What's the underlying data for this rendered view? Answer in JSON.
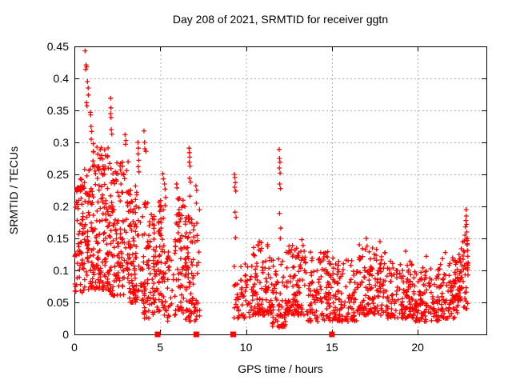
{
  "chart_data": {
    "type": "scatter",
    "title": "Day 208 of 2021, SRMTID for receiver ggtn",
    "xlabel": "GPS time / hours",
    "ylabel": "SRMTID / TECUs",
    "xlim": [
      0,
      24
    ],
    "ylim": [
      0,
      0.45
    ],
    "xticks": [
      0,
      5,
      10,
      15,
      20
    ],
    "yticks": [
      0,
      0.05,
      0.1,
      0.15,
      0.2,
      0.25,
      0.3,
      0.35,
      0.4,
      0.45
    ],
    "grid": true,
    "legend": "none",
    "marker": "plus",
    "series_name": "SRMTID",
    "colors": {
      "points": "#ff0000",
      "grid": "#b0b0b0",
      "axis": "#000000",
      "background": "#ffffff",
      "axis_markers": "#ff0000"
    },
    "axis_event_markers_x": [
      4.85,
      7.1,
      9.25,
      15.0
    ],
    "data_gaps_hours": [
      [
        7.3,
        9.25
      ],
      [
        23.0,
        24.0
      ]
    ],
    "spike_points": [
      [
        0.62,
        0.443
      ],
      [
        0.68,
        0.421
      ],
      [
        0.71,
        0.418
      ],
      [
        0.66,
        0.414
      ],
      [
        0.76,
        0.395
      ],
      [
        0.8,
        0.385
      ],
      [
        0.81,
        0.374
      ],
      [
        0.7,
        0.362
      ],
      [
        0.73,
        0.357
      ],
      [
        0.93,
        0.347
      ],
      [
        0.95,
        0.343
      ],
      [
        0.97,
        0.325
      ],
      [
        1.0,
        0.317
      ],
      [
        0.98,
        0.305
      ],
      [
        1.1,
        0.298
      ],
      [
        1.12,
        0.285
      ],
      [
        1.08,
        0.271
      ],
      [
        1.15,
        0.262
      ],
      [
        2.1,
        0.369
      ],
      [
        2.12,
        0.354
      ],
      [
        2.1,
        0.345
      ],
      [
        2.13,
        0.339
      ],
      [
        2.15,
        0.32
      ],
      [
        2.18,
        0.313
      ],
      [
        2.95,
        0.312
      ],
      [
        3.0,
        0.303
      ],
      [
        2.98,
        0.297
      ],
      [
        3.7,
        0.3
      ],
      [
        3.73,
        0.291
      ],
      [
        3.71,
        0.282
      ],
      [
        3.75,
        0.272
      ],
      [
        3.72,
        0.262
      ],
      [
        3.76,
        0.254
      ],
      [
        4.05,
        0.318
      ],
      [
        4.08,
        0.3
      ],
      [
        4.1,
        0.29
      ],
      [
        4.16,
        0.286
      ],
      [
        5.15,
        0.251
      ],
      [
        5.18,
        0.243
      ],
      [
        5.25,
        0.235
      ],
      [
        5.28,
        0.227
      ],
      [
        5.32,
        0.214
      ],
      [
        5.95,
        0.235
      ],
      [
        5.98,
        0.229
      ],
      [
        6.02,
        0.212
      ],
      [
        6.68,
        0.291
      ],
      [
        6.7,
        0.284
      ],
      [
        6.72,
        0.277
      ],
      [
        6.69,
        0.269
      ],
      [
        6.74,
        0.263
      ],
      [
        6.71,
        0.244
      ],
      [
        6.76,
        0.238
      ],
      [
        6.73,
        0.216
      ],
      [
        7.08,
        0.232
      ],
      [
        7.12,
        0.225
      ],
      [
        7.1,
        0.205
      ],
      [
        9.33,
        0.25
      ],
      [
        9.35,
        0.245
      ],
      [
        9.37,
        0.237
      ],
      [
        9.34,
        0.23
      ],
      [
        9.4,
        0.224
      ],
      [
        9.36,
        0.191
      ],
      [
        9.42,
        0.183
      ],
      [
        9.38,
        0.151
      ],
      [
        10.7,
        0.14
      ],
      [
        10.75,
        0.132
      ],
      [
        11.93,
        0.289
      ],
      [
        11.95,
        0.275
      ],
      [
        11.97,
        0.269
      ],
      [
        11.94,
        0.26
      ],
      [
        11.98,
        0.252
      ],
      [
        11.96,
        0.235
      ],
      [
        12.0,
        0.228
      ],
      [
        11.95,
        0.189
      ],
      [
        12.02,
        0.166
      ],
      [
        11.99,
        0.15
      ],
      [
        12.5,
        0.138
      ],
      [
        12.55,
        0.128
      ],
      [
        13.25,
        0.148
      ],
      [
        13.32,
        0.139
      ],
      [
        13.38,
        0.13
      ],
      [
        14.35,
        0.128
      ],
      [
        16.6,
        0.14
      ],
      [
        17.0,
        0.15
      ],
      [
        17.05,
        0.138
      ],
      [
        17.8,
        0.145
      ],
      [
        18.1,
        0.128
      ],
      [
        19.3,
        0.13
      ],
      [
        20.5,
        0.122
      ],
      [
        21.6,
        0.128
      ],
      [
        22.72,
        0.146
      ],
      [
        22.75,
        0.155
      ],
      [
        22.78,
        0.168
      ],
      [
        22.8,
        0.178
      ],
      [
        22.82,
        0.195
      ],
      [
        22.83,
        0.185
      ],
      [
        22.85,
        0.172
      ],
      [
        22.86,
        0.16
      ],
      [
        22.88,
        0.15
      ],
      [
        22.84,
        0.149
      ],
      [
        22.87,
        0.14
      ],
      [
        22.9,
        0.131
      ],
      [
        22.92,
        0.122
      ],
      [
        22.94,
        0.112
      ],
      [
        22.89,
        0.104
      ]
    ],
    "noise_bands": [
      {
        "x0": 0.02,
        "x1": 0.9,
        "n": 110,
        "ymin": 0.06,
        "ymax": 0.26,
        "skew": 0.85
      },
      {
        "x0": 0.9,
        "x1": 2.0,
        "n": 160,
        "ymin": 0.07,
        "ymax": 0.3,
        "skew": 1.25
      },
      {
        "x0": 2.0,
        "x1": 3.2,
        "n": 150,
        "ymin": 0.06,
        "ymax": 0.27,
        "skew": 1.3
      },
      {
        "x0": 3.2,
        "x1": 4.0,
        "n": 95,
        "ymin": 0.05,
        "ymax": 0.24,
        "skew": 1.3
      },
      {
        "x0": 4.0,
        "x1": 4.85,
        "n": 95,
        "ymin": 0.025,
        "ymax": 0.21,
        "skew": 1.2
      },
      {
        "x0": 4.88,
        "x1": 5.35,
        "n": 60,
        "ymin": 0.03,
        "ymax": 0.21,
        "skew": 1.15
      },
      {
        "x0": 5.35,
        "x1": 5.75,
        "n": 22,
        "ymin": 0.02,
        "ymax": 0.13,
        "skew": 1.2
      },
      {
        "x0": 5.75,
        "x1": 6.45,
        "n": 70,
        "ymin": 0.03,
        "ymax": 0.22,
        "skew": 1.3
      },
      {
        "x0": 6.45,
        "x1": 7.3,
        "n": 95,
        "ymin": 0.02,
        "ymax": 0.21,
        "skew": 1.35
      },
      {
        "x0": 9.3,
        "x1": 10.3,
        "n": 55,
        "ymin": 0.025,
        "ymax": 0.11,
        "skew": 1.4
      },
      {
        "x0": 10.3,
        "x1": 11.4,
        "n": 90,
        "ymin": 0.03,
        "ymax": 0.15,
        "skew": 1.6
      },
      {
        "x0": 11.4,
        "x1": 12.3,
        "n": 75,
        "ymin": 0.01,
        "ymax": 0.12,
        "skew": 1.5
      },
      {
        "x0": 12.3,
        "x1": 13.6,
        "n": 105,
        "ymin": 0.03,
        "ymax": 0.14,
        "skew": 1.6
      },
      {
        "x0": 13.6,
        "x1": 15.0,
        "n": 115,
        "ymin": 0.02,
        "ymax": 0.13,
        "skew": 1.5
      },
      {
        "x0": 15.0,
        "x1": 16.5,
        "n": 115,
        "ymin": 0.02,
        "ymax": 0.12,
        "skew": 1.5
      },
      {
        "x0": 16.5,
        "x1": 18.2,
        "n": 135,
        "ymin": 0.03,
        "ymax": 0.14,
        "skew": 1.6
      },
      {
        "x0": 18.2,
        "x1": 19.8,
        "n": 125,
        "ymin": 0.025,
        "ymax": 0.115,
        "skew": 1.5
      },
      {
        "x0": 19.8,
        "x1": 21.3,
        "n": 115,
        "ymin": 0.02,
        "ymax": 0.105,
        "skew": 1.4
      },
      {
        "x0": 21.3,
        "x1": 22.4,
        "n": 95,
        "ymin": 0.025,
        "ymax": 0.12,
        "skew": 1.4
      },
      {
        "x0": 22.4,
        "x1": 22.95,
        "n": 55,
        "ymin": 0.04,
        "ymax": 0.15,
        "skew": 1.15
      }
    ],
    "seed": 1337
  }
}
